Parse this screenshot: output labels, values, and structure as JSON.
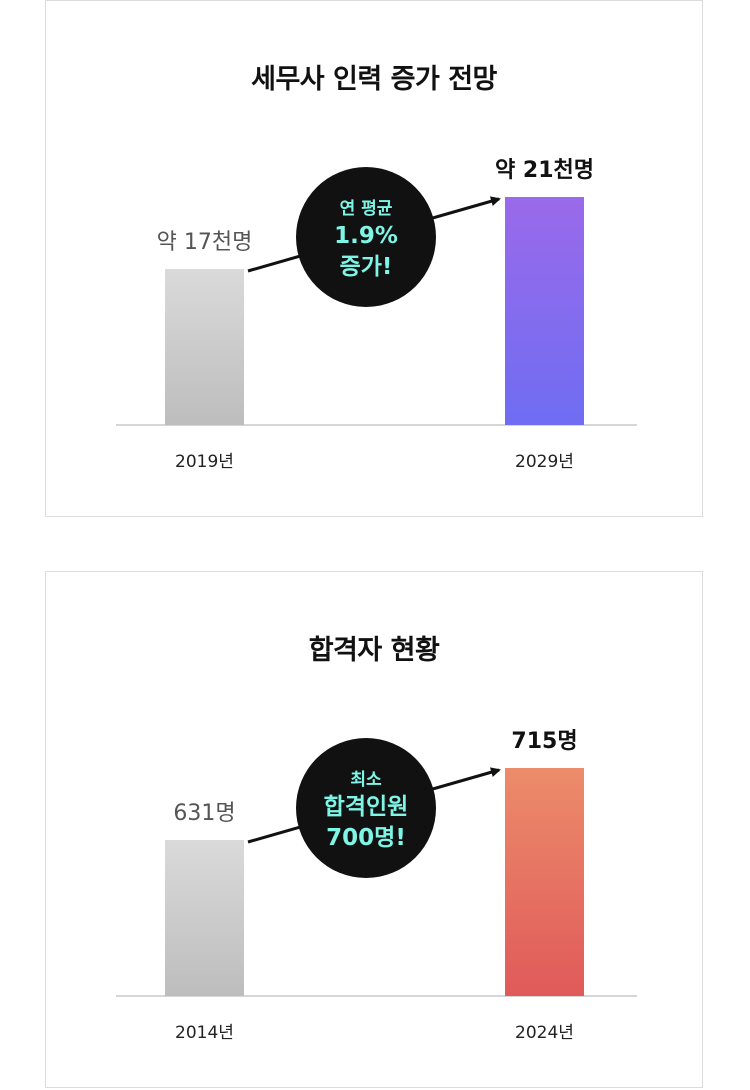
{
  "colors": {
    "border": "#dcdcdc",
    "gray_bar_top": "#dadada",
    "gray_bar_bottom": "#bdbdbd",
    "purple_top": "#9a6aea",
    "purple_bottom": "#6f6df2",
    "red_top": "#ec8c6a",
    "red_bottom": "#e05a5a",
    "badge_bg": "#111111",
    "badge_text": "#7ff5e6",
    "axis": "#c8c8c8"
  },
  "chart_data": [
    {
      "type": "bar",
      "title": "세무사 인력 증가 전망",
      "categories": [
        "2019년",
        "2029년"
      ],
      "values": [
        17,
        21
      ],
      "value_labels": [
        "약 17천명",
        "약 21천명"
      ],
      "ylim": [
        0,
        22
      ],
      "grid": false,
      "callout": {
        "lines": [
          "연 평균",
          "1.9%",
          "증가!"
        ]
      }
    },
    {
      "type": "bar",
      "title": "합격자 현황",
      "categories": [
        "2014년",
        "2024년"
      ],
      "values": [
        631,
        715
      ],
      "value_labels": [
        "631명",
        "715명"
      ],
      "ylim": [
        0,
        760
      ],
      "grid": false,
      "callout": {
        "lines": [
          "최소",
          "합격인원",
          "700명!"
        ]
      }
    }
  ]
}
